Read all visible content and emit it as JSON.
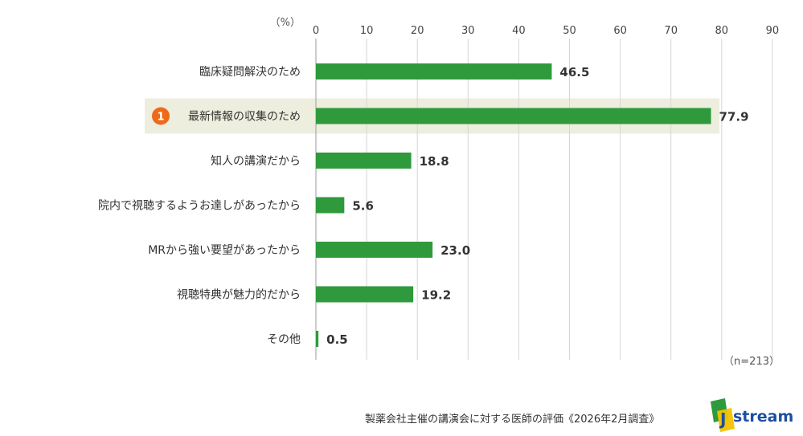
{
  "chart_data": {
    "type": "bar",
    "orientation": "horizontal",
    "unit_label": "（%）",
    "x_ticks": [
      "0",
      "10",
      "20",
      "30",
      "40",
      "50",
      "60",
      "70",
      "80",
      "90"
    ],
    "xlim": [
      0,
      90
    ],
    "grid": true,
    "categories": [
      "臨床疑問解決のため",
      "最新情報の収集のため",
      "知人の講演だから",
      "院内で視聴するようお達しがあったから",
      "MRから強い要望があったから",
      "視聴特典が魅力的だから",
      "その他"
    ],
    "values": [
      46.5,
      77.9,
      18.8,
      5.6,
      23.0,
      19.2,
      0.5
    ],
    "value_labels": [
      "46.5",
      "77.9",
      "18.8",
      "5.6",
      "23.0",
      "19.2",
      "0.5"
    ],
    "highlight": {
      "index": 1,
      "badge": "1"
    },
    "n_note": "（n=213）",
    "bar_color": "#2e9a3c",
    "highlight_band_color": "#eeeedf",
    "badge_color": "#ee6a1a"
  },
  "footer": {
    "source": "製薬会社主催の講演会に対する医師の評価《2026年2月調査》",
    "logo": {
      "letter": "J",
      "text": "stream",
      "icon": "jstream-logo-icon"
    }
  }
}
